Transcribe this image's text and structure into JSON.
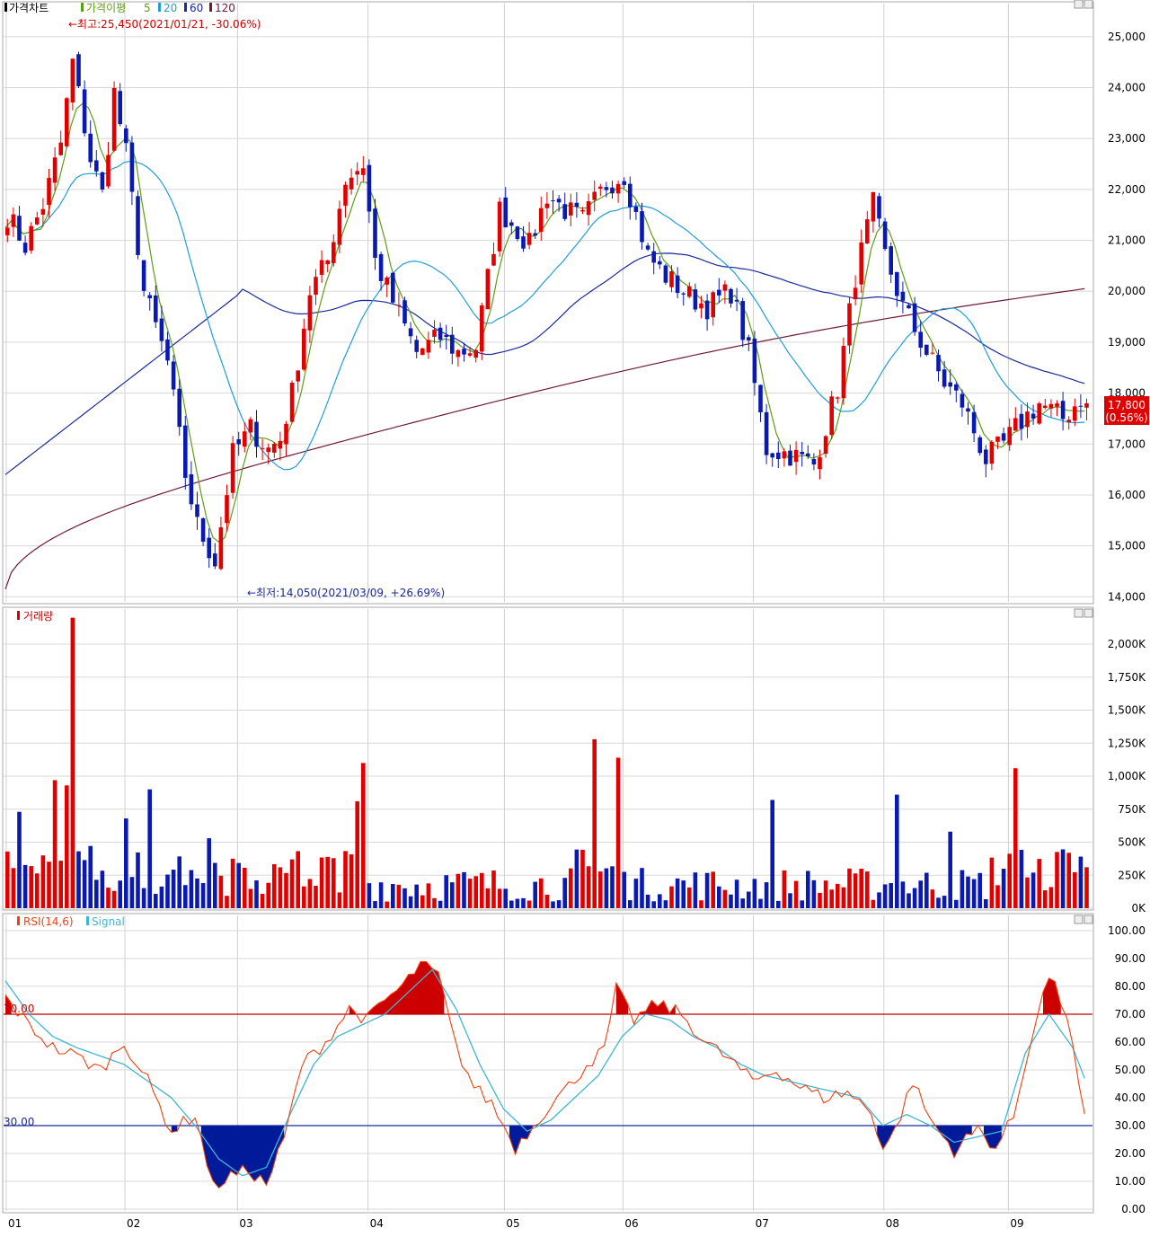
{
  "price_panel": {
    "legend": {
      "title": "가격차트",
      "ma_label": "가격이평",
      "ma_periods": [
        "5",
        "20",
        "60",
        "120"
      ]
    },
    "high_annotation": "←최고:25,450(2021/01/21, -30.06%)",
    "low_annotation": "←최저:14,050(2021/03/09, +26.69%)",
    "current_price": "17,800",
    "current_change": "(0.56%)"
  },
  "volume_panel": {
    "title": "거래량"
  },
  "rsi_panel": {
    "title": "RSI(14,6)",
    "signal_label": "Signal",
    "upper_line_label": "70.00",
    "lower_line_label": "30.00"
  },
  "colors": {
    "up": "#e00000",
    "down": "#0a1ab0",
    "ma5": "#5d9e12",
    "ma20": "#1f9fd8",
    "ma60": "#1a2a9c",
    "ma120": "#6e1a34",
    "rsi": "#f04010",
    "signal": "#3fb6d6",
    "upper_fill": "#cc0000",
    "lower_fill": "#001a99"
  },
  "chart_data": [
    {
      "type": "candlestick",
      "x_ticks": [
        "01",
        "02",
        "03",
        "04",
        "05",
        "06",
        "07",
        "08",
        "09"
      ],
      "ylim": [
        14000,
        25450
      ],
      "y_ticks": [
        "25,000",
        "24,000",
        "23,000",
        "22,000",
        "21,000",
        "20,000",
        "19,000",
        "18,000",
        "17,000",
        "16,000",
        "15,000",
        "14,000"
      ],
      "y_tick_values": [
        25000,
        24000,
        23000,
        22000,
        21000,
        20000,
        19000,
        18000,
        17000,
        16000,
        15000,
        14000
      ],
      "month_start_index": [
        0,
        20,
        39,
        61,
        84,
        104,
        126,
        148,
        169
      ],
      "close_anchor_index": [
        0,
        3,
        6,
        9,
        11,
        14,
        16,
        18,
        20,
        23,
        27,
        30,
        32,
        35,
        38,
        41,
        44,
        46,
        48,
        51,
        54,
        57,
        60,
        62,
        65,
        69,
        73,
        76,
        79,
        83,
        86,
        88,
        91,
        94,
        97,
        101,
        104,
        108,
        111,
        115,
        118,
        122,
        125,
        128,
        132,
        136,
        140,
        143,
        146,
        148,
        151,
        155,
        158,
        161,
        165,
        168,
        171,
        174,
        178,
        181
      ],
      "close_anchor_value": [
        21500,
        20900,
        21700,
        22900,
        24500,
        22600,
        21900,
        23900,
        22700,
        20000,
        18600,
        16400,
        15400,
        14700,
        16800,
        17300,
        16900,
        17100,
        18000,
        20000,
        20600,
        22200,
        22500,
        20600,
        19800,
        18800,
        19100,
        18800,
        18900,
        21600,
        21200,
        20900,
        21900,
        21600,
        21400,
        22100,
        22300,
        20700,
        20300,
        19900,
        19700,
        20000,
        18800,
        16900,
        16800,
        16600,
        18100,
        20300,
        21700,
        20700,
        19700,
        18800,
        18200,
        17800,
        16700,
        17000,
        17450,
        17800,
        17500,
        17900
      ],
      "note_last_close": 17800
    },
    {
      "type": "bar",
      "title": "거래량",
      "y_ticks": [
        "2,000K",
        "1,750K",
        "1,500K",
        "1,250K",
        "1,000K",
        "750K",
        "500K",
        "250K",
        "0K"
      ],
      "y_tick_values": [
        2000000,
        1750000,
        1500000,
        1250000,
        1000000,
        750000,
        500000,
        250000,
        0
      ],
      "ylim": [
        0,
        2150000
      ],
      "spikes_index": [
        2,
        8,
        10,
        11,
        20,
        24,
        34,
        59,
        60,
        99,
        103,
        129,
        150,
        159,
        170
      ],
      "spikes_value": [
        730000,
        970000,
        930000,
        2200000,
        680000,
        900000,
        530000,
        810000,
        1100000,
        1280000,
        1140000,
        820000,
        860000,
        580000,
        1060000
      ]
    },
    {
      "type": "line",
      "title": "RSI(14,6)",
      "series": [
        {
          "name": "RSI(14,6)"
        },
        {
          "name": "Signal"
        }
      ],
      "y_ticks": [
        "100.00",
        "90.00",
        "80.00",
        "70.00",
        "60.00",
        "50.00",
        "40.00",
        "30.00",
        "20.00",
        "10.00",
        "0.00"
      ],
      "y_tick_values": [
        100,
        90,
        80,
        70,
        60,
        50,
        40,
        30,
        20,
        10,
        0
      ],
      "ylim": [
        0,
        100
      ],
      "reference_lines": [
        70,
        30
      ],
      "rsi_anchor_index": [
        0,
        4,
        8,
        12,
        16,
        20,
        24,
        28,
        32,
        35,
        38,
        41,
        44,
        47,
        50,
        54,
        58,
        61,
        64,
        67,
        70,
        73,
        76,
        79,
        82,
        86,
        89,
        92,
        95,
        98,
        101,
        103,
        106,
        110,
        114,
        118,
        122,
        126,
        130,
        134,
        138,
        142,
        146,
        148,
        150,
        153,
        156,
        160,
        164,
        167,
        170,
        173,
        176,
        179,
        182
      ],
      "rsi_anchor_value": [
        76,
        66,
        58,
        55,
        50,
        60,
        46,
        28,
        34,
        8,
        12,
        14,
        9,
        25,
        52,
        60,
        72,
        68,
        75,
        80,
        88,
        84,
        58,
        44,
        38,
        22,
        30,
        38,
        44,
        52,
        57,
        79,
        68,
        74,
        70,
        60,
        54,
        46,
        50,
        44,
        40,
        42,
        35,
        22,
        28,
        46,
        32,
        21,
        29,
        22,
        33,
        62,
        84,
        70,
        32
      ],
      "signal_anchor_index": [
        0,
        4,
        8,
        12,
        16,
        20,
        24,
        28,
        32,
        36,
        40,
        44,
        48,
        52,
        56,
        60,
        64,
        68,
        72,
        76,
        80,
        84,
        88,
        92,
        96,
        100,
        104,
        108,
        112,
        116,
        120,
        124,
        128,
        132,
        136,
        140,
        144,
        148,
        152,
        156,
        160,
        164,
        168,
        172,
        176,
        180,
        182
      ],
      "signal_anchor_value": [
        82,
        70,
        62,
        58,
        55,
        52,
        46,
        40,
        30,
        18,
        12,
        15,
        34,
        52,
        62,
        66,
        70,
        78,
        86,
        72,
        52,
        36,
        28,
        32,
        40,
        48,
        62,
        70,
        68,
        62,
        58,
        52,
        48,
        46,
        44,
        42,
        40,
        30,
        34,
        30,
        24,
        26,
        28,
        56,
        70,
        58,
        47
      ]
    }
  ]
}
